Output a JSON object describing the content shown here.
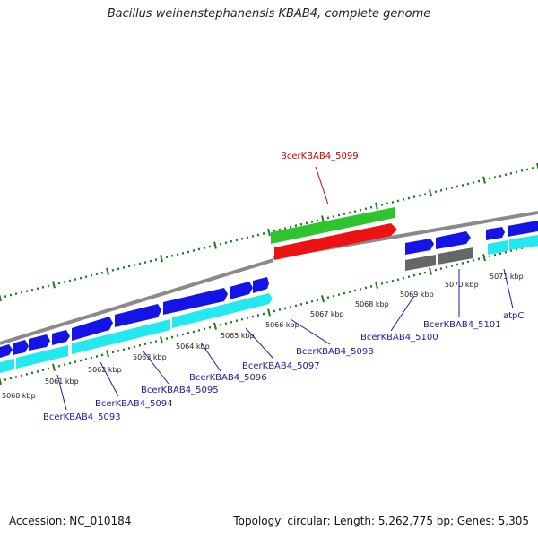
{
  "title": "Bacillus weihenstephanensis KBAB4, complete genome",
  "footer": {
    "accession": "Accession: NC_010184",
    "stats": "Topology: circular; Length: 5,262,775 bp; Genes: 5,305"
  },
  "scale_labels": [
    "5060 kbp",
    "5061 kbp",
    "5062 kbp",
    "5063 kbp",
    "5064 kbp",
    "5065 kbp",
    "5066 kbp",
    "5067 kbp",
    "5068 kbp",
    "5069 kbp",
    "5070 kbp",
    "5071 kbp"
  ],
  "gene_labels": [
    {
      "id": "g5093",
      "text": "BcerKBAB4_5093",
      "color": "#1a1aa6"
    },
    {
      "id": "g5094",
      "text": "BcerKBAB4_5094",
      "color": "#1a1aa6"
    },
    {
      "id": "g5095",
      "text": "BcerKBAB4_5095",
      "color": "#1a1aa6"
    },
    {
      "id": "g5096",
      "text": "BcerKBAB4_5096",
      "color": "#1a1aa6"
    },
    {
      "id": "g5097",
      "text": "BcerKBAB4_5097",
      "color": "#1a1aa6"
    },
    {
      "id": "g5098",
      "text": "BcerKBAB4_5098",
      "color": "#1a1aa6"
    },
    {
      "id": "g5099",
      "text": "BcerKBAB4_5099",
      "color": "#cc0000"
    },
    {
      "id": "g5100",
      "text": "BcerKBAB4_5100",
      "color": "#1a1aa6"
    },
    {
      "id": "g5101",
      "text": "BcerKBAB4_5101",
      "color": "#1a1aa6"
    },
    {
      "id": "gatpC",
      "text": "atpC",
      "color": "#1a1aa6"
    }
  ],
  "colors": {
    "backbone": "#8a8a8a",
    "tick": "#1b7a1b",
    "cds_forward": "#1414e6",
    "cds_reverse": "#22e8f0",
    "highlight_top": "#2ec42e",
    "highlight_bottom": "#ee1111",
    "pseudo": "#666666"
  }
}
